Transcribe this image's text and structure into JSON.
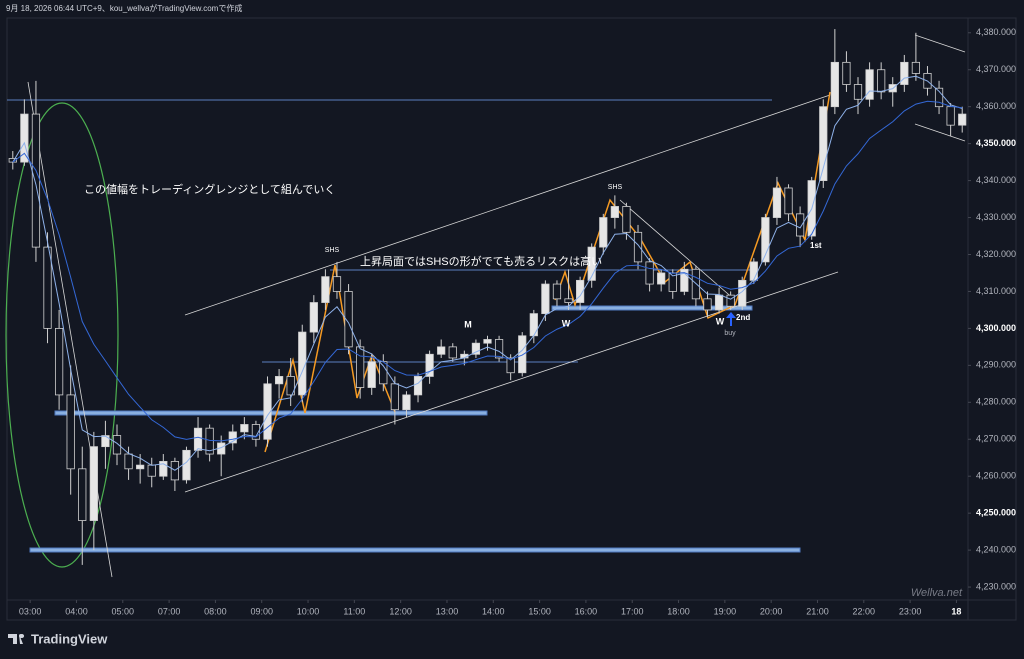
{
  "header": "9月 18, 2026 06:44 UTC+9、kou_wellvaがTradingView.comで作成",
  "footer_brand": "TradingView",
  "watermark": "Wellva.net",
  "annotations": {
    "range_note": "この値幅をトレーディングレンジとして組んでいく",
    "shs_note": "上昇局面ではSHSの形がでても売るリスクは高い",
    "shs_1": "SHS",
    "shs_2": "SHS",
    "m": "M",
    "w_1": "W",
    "w_2": "W",
    "second": "2nd",
    "first": "1st",
    "buy": "buy"
  },
  "chart_data": {
    "type": "candlestick",
    "open": [
      4346,
      4345,
      4358,
      4322,
      4300,
      4282,
      4262,
      4248,
      4268,
      4271,
      4266,
      4262,
      4263,
      4260,
      4264,
      4259,
      4267,
      4273,
      4266,
      4269,
      4272,
      4274,
      4270,
      4285,
      4287,
      4282,
      4299,
      4307,
      4314,
      4310,
      4295,
      4284,
      4291,
      4285,
      4278,
      4282,
      4287,
      4293,
      4295,
      4292,
      4293,
      4296,
      4297,
      4292,
      4288,
      4298,
      4304,
      4312,
      4308,
      4307,
      4313,
      4322,
      4330,
      4333,
      4326,
      4318,
      4312,
      4315,
      4310,
      4316,
      4308,
      4305,
      4309,
      4306,
      4313,
      4318,
      4330,
      4338,
      4331,
      4325,
      4340,
      4360,
      4372,
      4366,
      4362,
      4370,
      4364,
      4366,
      4372,
      4369,
      4365,
      4360,
      4355
    ],
    "high": [
      4348,
      4362,
      4367,
      4326,
      4305,
      4290,
      4268,
      4272,
      4275,
      4274,
      4268,
      4266,
      4265,
      4266,
      4265,
      4268,
      4276,
      4274,
      4271,
      4274,
      4276,
      4275,
      4287,
      4289,
      4292,
      4301,
      4309,
      4316,
      4318,
      4312,
      4297,
      4293,
      4293,
      4287,
      4283,
      4288,
      4294,
      4297,
      4296,
      4294,
      4297,
      4298,
      4298,
      4293,
      4299,
      4305,
      4313,
      4313,
      4316,
      4314,
      4323,
      4331,
      4336,
      4334,
      4328,
      4319,
      4316,
      4316,
      4318,
      4317,
      4310,
      4311,
      4310,
      4314,
      4319,
      4331,
      4341,
      4339,
      4333,
      4341,
      4362,
      4381,
      4375,
      4368,
      4372,
      4372,
      4368,
      4374,
      4380,
      4371,
      4367,
      4361,
      4360
    ],
    "low": [
      4343,
      4344,
      4318,
      4296,
      4278,
      4255,
      4236,
      4240,
      4262,
      4263,
      4259,
      4258,
      4257,
      4259,
      4256,
      4258,
      4265,
      4264,
      4260,
      4267,
      4270,
      4268,
      4268,
      4281,
      4279,
      4280,
      4296,
      4305,
      4308,
      4293,
      4281,
      4282,
      4283,
      4274,
      4276,
      4280,
      4285,
      4292,
      4291,
      4290,
      4292,
      4294,
      4291,
      4286,
      4287,
      4296,
      4302,
      4306,
      4305,
      4305,
      4311,
      4320,
      4327,
      4324,
      4316,
      4310,
      4310,
      4308,
      4309,
      4306,
      4303,
      4304,
      4305,
      4305,
      4312,
      4317,
      4328,
      4329,
      4322,
      4324,
      4338,
      4358,
      4364,
      4358,
      4360,
      4362,
      4360,
      4364,
      4367,
      4363,
      4358,
      4352,
      4353
    ],
    "close": [
      4345,
      4358,
      4322,
      4300,
      4282,
      4262,
      4248,
      4268,
      4271,
      4266,
      4262,
      4263,
      4260,
      4264,
      4259,
      4267,
      4273,
      4266,
      4269,
      4272,
      4274,
      4270,
      4285,
      4287,
      4282,
      4299,
      4307,
      4314,
      4310,
      4295,
      4284,
      4291,
      4285,
      4278,
      4282,
      4287,
      4293,
      4295,
      4292,
      4293,
      4296,
      4297,
      4292,
      4288,
      4298,
      4304,
      4312,
      4308,
      4307,
      4313,
      4322,
      4330,
      4333,
      4326,
      4318,
      4312,
      4315,
      4310,
      4316,
      4308,
      4305,
      4309,
      4306,
      4313,
      4318,
      4330,
      4338,
      4331,
      4325,
      4340,
      4360,
      4372,
      4366,
      4362,
      4370,
      4364,
      4366,
      4372,
      4369,
      4365,
      4360,
      4355,
      4358
    ],
    "up_color": "#e6e6e6",
    "down_color": "#131722",
    "wick_color": "#d0d0d0",
    "xlim": [
      0,
      83
    ],
    "xticks": [
      {
        "value": 2,
        "label": "03:00"
      },
      {
        "value": 6,
        "label": "04:00"
      },
      {
        "value": 10,
        "label": "05:00"
      },
      {
        "value": 14,
        "label": "07:00"
      },
      {
        "value": 18,
        "label": "08:00"
      },
      {
        "value": 22,
        "label": "09:00"
      },
      {
        "value": 26,
        "label": "10:00"
      },
      {
        "value": 30,
        "label": "11:00"
      },
      {
        "value": 34,
        "label": "12:00"
      },
      {
        "value": 38,
        "label": "13:00"
      },
      {
        "value": 42,
        "label": "14:00"
      },
      {
        "value": 46,
        "label": "15:00"
      },
      {
        "value": 50,
        "label": "16:00"
      },
      {
        "value": 54,
        "label": "17:00"
      },
      {
        "value": 58,
        "label": "18:00"
      },
      {
        "value": 62,
        "label": "19:00"
      },
      {
        "value": 66,
        "label": "20:00"
      },
      {
        "value": 70,
        "label": "21:00"
      },
      {
        "value": 74,
        "label": "22:00"
      },
      {
        "value": 78,
        "label": "23:00"
      },
      82
    ],
    "ylim": [
      4226.5,
      4384
    ],
    "yticks": [
      {
        "value": 4230,
        "label": "4,230.000"
      },
      {
        "value": 4240,
        "label": "4,240.000"
      },
      {
        "value": 4250,
        "label": "4,250.000"
      },
      {
        "value": 4260,
        "label": "4,260.000"
      },
      {
        "value": 4270,
        "label": "4,270.000"
      },
      {
        "value": 4280,
        "label": "4,280.000"
      },
      {
        "value": 4290,
        "label": "4,290.000"
      },
      {
        "value": 4300,
        "label": "4,300.000"
      },
      {
        "value": 4310,
        "label": "4,310.000"
      },
      {
        "value": 4320,
        "label": "4,320.000"
      },
      {
        "value": 4330,
        "label": "4,330.000"
      },
      {
        "value": 4340,
        "label": "4,340.000"
      },
      {
        "value": 4350,
        "label": "4,350.000"
      },
      {
        "value": 4360,
        "label": "4,360.000"
      },
      {
        "value": 4370,
        "label": "4,370.000"
      },
      {
        "value": 4380,
        "label": "4,380.000"
      }
    ],
    "last_xtick_label": "18"
  }
}
